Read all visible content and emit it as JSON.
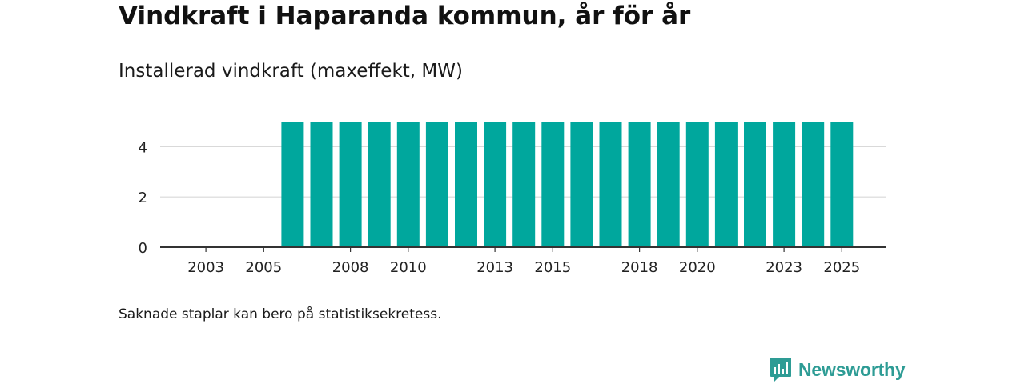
{
  "title": "Vindkraft i Haparanda kommun, år för år",
  "subtitle": "Installerad vindkraft (maxeffekt, MW)",
  "footnote": "Saknade staplar kan bero på statistiksekretess.",
  "brand": {
    "name": "Newsworthy",
    "icon": "newsworthy-logo-icon",
    "color": "#2e9c95"
  },
  "colors": {
    "bar": "#00a79d",
    "grid": "#d9d9d9",
    "axis": "#333333"
  },
  "chart_data": {
    "type": "bar",
    "title": "Installerad vindkraft (maxeffekt, MW)",
    "xlabel": "",
    "ylabel": "",
    "categories": [
      "2002",
      "2003",
      "2004",
      "2005",
      "2006",
      "2007",
      "2008",
      "2009",
      "2010",
      "2011",
      "2012",
      "2013",
      "2014",
      "2015",
      "2016",
      "2017",
      "2018",
      "2019",
      "2020",
      "2021",
      "2022",
      "2023",
      "2024",
      "2025"
    ],
    "values": [
      null,
      null,
      null,
      null,
      5,
      5,
      5,
      5,
      5,
      5,
      5,
      5,
      5,
      5,
      5,
      5,
      5,
      5,
      5,
      5,
      5,
      5,
      5,
      5
    ],
    "x_tick_labels": [
      "2003",
      "2005",
      "2008",
      "2010",
      "2013",
      "2015",
      "2018",
      "2020",
      "2023",
      "2025"
    ],
    "y_ticks": [
      0,
      2,
      4
    ],
    "ylim": [
      0,
      5.8
    ],
    "grid": true,
    "legend": "none"
  }
}
